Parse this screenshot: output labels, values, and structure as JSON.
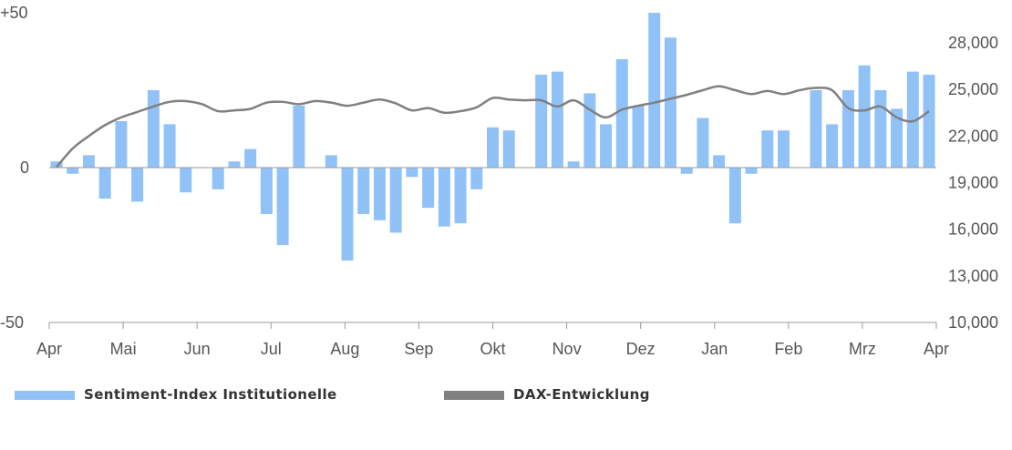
{
  "chart_data": {
    "type": "bar+line",
    "categories_months": [
      "Apr",
      "Mai",
      "Jun",
      "Jul",
      "Aug",
      "Sep",
      "Okt",
      "Nov",
      "Dez",
      "Jan",
      "Feb",
      "Mrz",
      "Apr"
    ],
    "left_axis": {
      "ylim": [
        -50,
        50
      ],
      "tick_labels": [
        "+50",
        "0",
        "-50"
      ]
    },
    "right_axis": {
      "ylim": [
        10000,
        28000
      ],
      "ticks": [
        10000,
        13000,
        16000,
        19000,
        22000,
        25000,
        28000
      ],
      "tick_labels": [
        "10,000",
        "13,000",
        "16,000",
        "19,000",
        "22,000",
        "25,000",
        "28,000"
      ]
    },
    "legend_placement": "bottom",
    "grid": false,
    "series": [
      {
        "name": "Sentiment-Index Institutionelle",
        "type": "bar",
        "axis": "left",
        "color": "#90c2f8",
        "values": [
          2,
          -2,
          4,
          -10,
          15,
          -11,
          25,
          14,
          -8,
          0,
          -7,
          2,
          6,
          -15,
          -25,
          20,
          0,
          4,
          -30,
          -15,
          -17,
          -21,
          -3,
          -13,
          -19,
          -18,
          -7,
          13,
          12,
          0,
          30,
          31,
          2,
          24,
          14,
          35,
          20,
          50,
          42,
          -2,
          16,
          4,
          -18,
          -2,
          12,
          12,
          0,
          25,
          14,
          25,
          33,
          25,
          19,
          31,
          30
        ]
      },
      {
        "name": "DAX-Entwicklung",
        "type": "line",
        "axis": "right",
        "color": "#808080",
        "values": [
          20000,
          21200,
          22000,
          22700,
          23200,
          23550,
          23900,
          24200,
          24250,
          24050,
          23600,
          23650,
          23750,
          24150,
          24200,
          24050,
          24250,
          24150,
          23950,
          24150,
          24350,
          24100,
          23650,
          23800,
          23500,
          23600,
          23850,
          24450,
          24350,
          24300,
          24300,
          23900,
          24300,
          23700,
          23200,
          23700,
          23950,
          24150,
          24400,
          24650,
          24950,
          25200,
          24950,
          24700,
          24900,
          24700,
          24950,
          25100,
          24950,
          23800,
          23650,
          23900,
          23200,
          22950,
          23600
        ]
      }
    ]
  }
}
